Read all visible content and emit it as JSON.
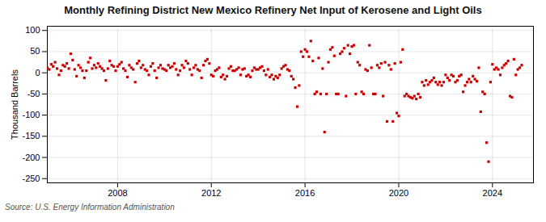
{
  "chart_data": {
    "type": "scatter",
    "title": "Monthly Refining District New Mexico Refinery Net Input of Kerosene and Light Oils",
    "ylabel": "Thousand Barrels",
    "source": "Source: U.S. Energy Information Administration",
    "color": "#cc0000",
    "marker": "square",
    "grid": true,
    "xlim": [
      2005.0,
      2025.75
    ],
    "xticks": [
      2008,
      2012,
      2016,
      2020,
      2024
    ],
    "ylim": [
      -260,
      110
    ],
    "yticks": [
      -250,
      -200,
      -150,
      -100,
      -50,
      0,
      50,
      100
    ],
    "x": [
      2005.0,
      2005.083,
      2005.167,
      2005.25,
      2005.333,
      2005.417,
      2005.5,
      2005.583,
      2005.667,
      2005.75,
      2005.833,
      2005.917,
      2006.0,
      2006.083,
      2006.167,
      2006.25,
      2006.333,
      2006.417,
      2006.5,
      2006.583,
      2006.667,
      2006.75,
      2006.833,
      2006.917,
      2007.0,
      2007.083,
      2007.167,
      2007.25,
      2007.333,
      2007.417,
      2007.5,
      2007.583,
      2007.667,
      2007.75,
      2007.833,
      2007.917,
      2008.0,
      2008.083,
      2008.167,
      2008.25,
      2008.333,
      2008.417,
      2008.5,
      2008.583,
      2008.667,
      2008.75,
      2008.833,
      2008.917,
      2009.0,
      2009.083,
      2009.167,
      2009.25,
      2009.333,
      2009.417,
      2009.5,
      2009.583,
      2009.667,
      2009.75,
      2009.833,
      2009.917,
      2010.0,
      2010.083,
      2010.167,
      2010.25,
      2010.333,
      2010.417,
      2010.5,
      2010.583,
      2010.667,
      2010.75,
      2010.833,
      2010.917,
      2011.0,
      2011.083,
      2011.167,
      2011.25,
      2011.333,
      2011.417,
      2011.5,
      2011.583,
      2011.667,
      2011.75,
      2011.833,
      2011.917,
      2012.0,
      2012.083,
      2012.167,
      2012.25,
      2012.333,
      2012.417,
      2012.5,
      2012.583,
      2012.667,
      2012.75,
      2012.833,
      2012.917,
      2013.0,
      2013.083,
      2013.167,
      2013.25,
      2013.333,
      2013.417,
      2013.5,
      2013.583,
      2013.667,
      2013.75,
      2013.833,
      2013.917,
      2014.0,
      2014.083,
      2014.167,
      2014.25,
      2014.333,
      2014.417,
      2014.5,
      2014.583,
      2014.667,
      2014.75,
      2014.833,
      2014.917,
      2015.0,
      2015.083,
      2015.167,
      2015.25,
      2015.333,
      2015.417,
      2015.5,
      2015.583,
      2015.667,
      2015.75,
      2015.833,
      2015.917,
      2016.0,
      2016.083,
      2016.167,
      2016.25,
      2016.333,
      2016.417,
      2016.5,
      2016.583,
      2016.667,
      2016.75,
      2016.833,
      2016.917,
      2017.0,
      2017.083,
      2017.167,
      2017.25,
      2017.333,
      2017.417,
      2017.5,
      2017.583,
      2017.667,
      2017.75,
      2017.833,
      2017.917,
      2018.0,
      2018.083,
      2018.167,
      2018.25,
      2018.333,
      2018.417,
      2018.5,
      2018.583,
      2018.667,
      2018.75,
      2018.833,
      2018.917,
      2019.0,
      2019.083,
      2019.167,
      2019.25,
      2019.333,
      2019.417,
      2019.5,
      2019.583,
      2019.667,
      2019.75,
      2019.833,
      2019.917,
      2020.0,
      2020.083,
      2020.167,
      2020.25,
      2020.333,
      2020.417,
      2020.5,
      2020.583,
      2020.667,
      2020.75,
      2020.833,
      2020.917,
      2021.0,
      2021.083,
      2021.167,
      2021.25,
      2021.333,
      2021.417,
      2021.5,
      2021.583,
      2021.667,
      2021.75,
      2021.833,
      2021.917,
      2022.0,
      2022.083,
      2022.167,
      2022.25,
      2022.333,
      2022.417,
      2022.5,
      2022.583,
      2022.667,
      2022.75,
      2022.833,
      2022.917,
      2023.0,
      2023.083,
      2023.167,
      2023.25,
      2023.333,
      2023.417,
      2023.5,
      2023.583,
      2023.667,
      2023.75,
      2023.833,
      2023.917,
      2024.0,
      2024.083,
      2024.167,
      2024.25,
      2024.333,
      2024.417,
      2024.5,
      2024.583,
      2024.667,
      2024.75,
      2024.833,
      2024.917,
      2025.0,
      2025.083,
      2025.167,
      2025.25
    ],
    "values": [
      12,
      8,
      20,
      15,
      25,
      10,
      -5,
      5,
      18,
      15,
      22,
      10,
      45,
      30,
      8,
      -8,
      18,
      12,
      5,
      -12,
      5,
      25,
      35,
      10,
      18,
      12,
      22,
      15,
      10,
      5,
      -18,
      10,
      28,
      18,
      15,
      5,
      15,
      20,
      25,
      10,
      5,
      -10,
      18,
      12,
      8,
      -22,
      22,
      28,
      12,
      18,
      8,
      5,
      -5,
      15,
      22,
      5,
      -12,
      12,
      18,
      10,
      8,
      5,
      18,
      12,
      15,
      22,
      8,
      -5,
      5,
      18,
      12,
      28,
      22,
      8,
      -5,
      12,
      18,
      8,
      5,
      -12,
      18,
      28,
      32,
      22,
      -5,
      -8,
      5,
      8,
      12,
      -10,
      -5,
      -15,
      -8,
      10,
      15,
      5,
      5,
      8,
      12,
      -5,
      8,
      10,
      -8,
      -5,
      -10,
      5,
      12,
      8,
      8,
      12,
      15,
      5,
      -5,
      8,
      -10,
      -5,
      -15,
      -8,
      -12,
      -5,
      10,
      15,
      18,
      8,
      5,
      -8,
      -15,
      -35,
      -80,
      -30,
      50,
      38,
      55,
      50,
      38,
      75,
      28,
      -50,
      -45,
      35,
      -50,
      10,
      -140,
      -50,
      25,
      55,
      60,
      40,
      -50,
      -50,
      45,
      50,
      58,
      -55,
      65,
      45,
      62,
      65,
      -50,
      25,
      18,
      -45,
      -50,
      8,
      5,
      65,
      12,
      -50,
      -50,
      18,
      12,
      22,
      -55,
      25,
      -115,
      18,
      8,
      -115,
      22,
      -95,
      -102,
      25,
      55,
      -55,
      -50,
      -55,
      -58,
      -60,
      -55,
      -62,
      -50,
      -58,
      -22,
      -30,
      -18,
      -28,
      -22,
      -18,
      -12,
      -22,
      -28,
      -22,
      -30,
      -22,
      -5,
      -12,
      -18,
      -5,
      -8,
      -22,
      -18,
      -8,
      -5,
      -45,
      -30,
      -22,
      -15,
      -22,
      -8,
      -15,
      -20,
      12,
      -92,
      -45,
      -50,
      -165,
      -210,
      -22,
      20,
      8,
      12,
      8,
      -5,
      12,
      18,
      22,
      28,
      -55,
      -58,
      32,
      -5,
      8,
      12,
      18
    ]
  }
}
